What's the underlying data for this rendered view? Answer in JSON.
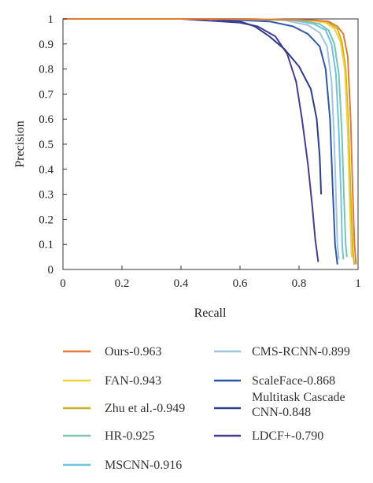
{
  "chart_data": {
    "type": "line",
    "title": "",
    "xlabel": "Recall",
    "ylabel": "Precision",
    "xlim": [
      0,
      1
    ],
    "ylim": [
      0,
      1
    ],
    "xticks": [
      "0",
      "0.2",
      "0.4",
      "0.6",
      "0.8",
      "1"
    ],
    "yticks": [
      "0",
      "0.1",
      "0.2",
      "0.3",
      "0.4",
      "0.5",
      "0.6",
      "0.7",
      "0.8",
      "0.9",
      "1"
    ],
    "grid": false,
    "legend_position": "bottom",
    "series": [
      {
        "name": "Ours-0.963",
        "color": "#e07b39",
        "points": [
          [
            0,
            1
          ],
          [
            0.6,
            1
          ],
          [
            0.85,
            0.995
          ],
          [
            0.9,
            0.99
          ],
          [
            0.93,
            0.97
          ],
          [
            0.95,
            0.94
          ],
          [
            0.965,
            0.85
          ],
          [
            0.975,
            0.6
          ],
          [
            0.982,
            0.3
          ],
          [
            0.988,
            0.1
          ],
          [
            0.993,
            0.02
          ]
        ]
      },
      {
        "name": "FAN-0.943",
        "color": "#f2d33b",
        "points": [
          [
            0,
            1
          ],
          [
            0.6,
            1
          ],
          [
            0.83,
            0.995
          ],
          [
            0.89,
            0.985
          ],
          [
            0.92,
            0.96
          ],
          [
            0.94,
            0.91
          ],
          [
            0.955,
            0.8
          ],
          [
            0.965,
            0.55
          ],
          [
            0.972,
            0.25
          ],
          [
            0.978,
            0.05
          ]
        ]
      },
      {
        "name": "Zhu et al.-0.949",
        "color": "#c9b22a",
        "points": [
          [
            0,
            1
          ],
          [
            0.6,
            1
          ],
          [
            0.84,
            0.995
          ],
          [
            0.9,
            0.985
          ],
          [
            0.93,
            0.96
          ],
          [
            0.945,
            0.91
          ],
          [
            0.958,
            0.8
          ],
          [
            0.968,
            0.55
          ],
          [
            0.975,
            0.3
          ],
          [
            0.982,
            0.08
          ],
          [
            0.987,
            0.02
          ]
        ]
      },
      {
        "name": "HR-0.925",
        "color": "#7cc3b0",
        "points": [
          [
            0,
            1
          ],
          [
            0.6,
            1
          ],
          [
            0.8,
            0.995
          ],
          [
            0.87,
            0.98
          ],
          [
            0.9,
            0.955
          ],
          [
            0.92,
            0.9
          ],
          [
            0.935,
            0.78
          ],
          [
            0.945,
            0.55
          ],
          [
            0.952,
            0.3
          ],
          [
            0.958,
            0.1
          ],
          [
            0.962,
            0.05
          ]
        ]
      },
      {
        "name": "MSCNN-0.916",
        "color": "#6ec3e2",
        "points": [
          [
            0,
            1
          ],
          [
            0.6,
            1
          ],
          [
            0.78,
            0.995
          ],
          [
            0.85,
            0.98
          ],
          [
            0.89,
            0.955
          ],
          [
            0.91,
            0.9
          ],
          [
            0.925,
            0.78
          ],
          [
            0.935,
            0.55
          ],
          [
            0.942,
            0.3
          ],
          [
            0.946,
            0.1
          ],
          [
            0.95,
            0.04
          ]
        ]
      },
      {
        "name": "CMS-RCNN-0.899",
        "color": "#9ec5e0",
        "points": [
          [
            0,
            1
          ],
          [
            0.55,
            1
          ],
          [
            0.75,
            0.995
          ],
          [
            0.83,
            0.975
          ],
          [
            0.87,
            0.945
          ],
          [
            0.895,
            0.89
          ],
          [
            0.91,
            0.75
          ],
          [
            0.918,
            0.55
          ],
          [
            0.925,
            0.3
          ],
          [
            0.93,
            0.1
          ],
          [
            0.935,
            0.04
          ]
        ]
      },
      {
        "name": "ScaleFace-0.868",
        "color": "#2f57a8",
        "points": [
          [
            0,
            1
          ],
          [
            0.5,
            1
          ],
          [
            0.7,
            0.99
          ],
          [
            0.78,
            0.97
          ],
          [
            0.83,
            0.94
          ],
          [
            0.87,
            0.89
          ],
          [
            0.89,
            0.8
          ],
          [
            0.905,
            0.6
          ],
          [
            0.915,
            0.3
          ],
          [
            0.922,
            0.1
          ],
          [
            0.93,
            0.02
          ]
        ]
      },
      {
        "name": "Multitask Cascade CNN-0.848",
        "color": "#2d3d8c",
        "points": [
          [
            0,
            1
          ],
          [
            0.5,
            1
          ],
          [
            0.6,
            0.99
          ],
          [
            0.65,
            0.97
          ],
          [
            0.7,
            0.93
          ],
          [
            0.75,
            0.88
          ],
          [
            0.8,
            0.81
          ],
          [
            0.84,
            0.72
          ],
          [
            0.86,
            0.6
          ],
          [
            0.87,
            0.45
          ],
          [
            0.875,
            0.3
          ]
        ]
      },
      {
        "name": "LDCF+-0.790",
        "color": "#4a3a96",
        "points": [
          [
            0,
            1
          ],
          [
            0.4,
            1
          ],
          [
            0.6,
            0.985
          ],
          [
            0.66,
            0.97
          ],
          [
            0.72,
            0.93
          ],
          [
            0.76,
            0.86
          ],
          [
            0.79,
            0.75
          ],
          [
            0.81,
            0.6
          ],
          [
            0.83,
            0.42
          ],
          [
            0.845,
            0.25
          ],
          [
            0.855,
            0.12
          ],
          [
            0.865,
            0.03
          ]
        ]
      }
    ]
  }
}
